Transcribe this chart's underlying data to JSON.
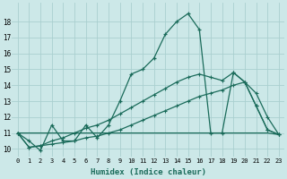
{
  "xlabel": "Humidex (Indice chaleur)",
  "bg_color": "#cce8e8",
  "grid_color": "#aacfcf",
  "line_color": "#1a6b5a",
  "xlim": [
    -0.5,
    23.5
  ],
  "ylim": [
    9.5,
    19.2
  ],
  "yticks": [
    10,
    11,
    12,
    13,
    14,
    15,
    16,
    17,
    18
  ],
  "xticks": [
    0,
    1,
    2,
    3,
    4,
    5,
    6,
    7,
    8,
    9,
    10,
    11,
    12,
    13,
    14,
    15,
    16,
    17,
    18,
    19,
    20,
    21,
    22,
    23
  ],
  "series": [
    [
      11.0,
      10.5,
      9.9,
      11.5,
      10.5,
      10.5,
      11.5,
      10.7,
      11.5,
      13.0,
      14.7,
      15.0,
      15.7,
      17.2,
      18.0,
      18.5,
      17.5,
      11.0,
      11.0,
      14.8,
      14.2,
      12.7,
      11.2,
      10.9
    ],
    [
      11.0,
      11.0,
      11.0,
      11.0,
      11.0,
      11.0,
      11.0,
      11.0,
      11.0,
      11.0,
      11.0,
      11.0,
      11.0,
      11.0,
      11.0,
      11.0,
      11.0,
      11.0,
      11.0,
      11.0,
      11.0,
      11.0,
      11.0,
      10.9
    ],
    [
      11.0,
      10.1,
      10.2,
      10.3,
      10.4,
      10.5,
      10.7,
      10.8,
      11.0,
      11.2,
      11.5,
      11.8,
      12.1,
      12.4,
      12.7,
      13.0,
      13.3,
      13.5,
      13.7,
      14.0,
      14.2,
      13.5,
      12.0,
      10.9
    ],
    [
      11.0,
      10.1,
      10.2,
      10.5,
      10.7,
      11.0,
      11.3,
      11.5,
      11.8,
      12.2,
      12.6,
      13.0,
      13.4,
      13.8,
      14.2,
      14.5,
      14.7,
      14.5,
      14.3,
      14.8,
      14.2,
      12.7,
      11.2,
      10.9
    ]
  ]
}
